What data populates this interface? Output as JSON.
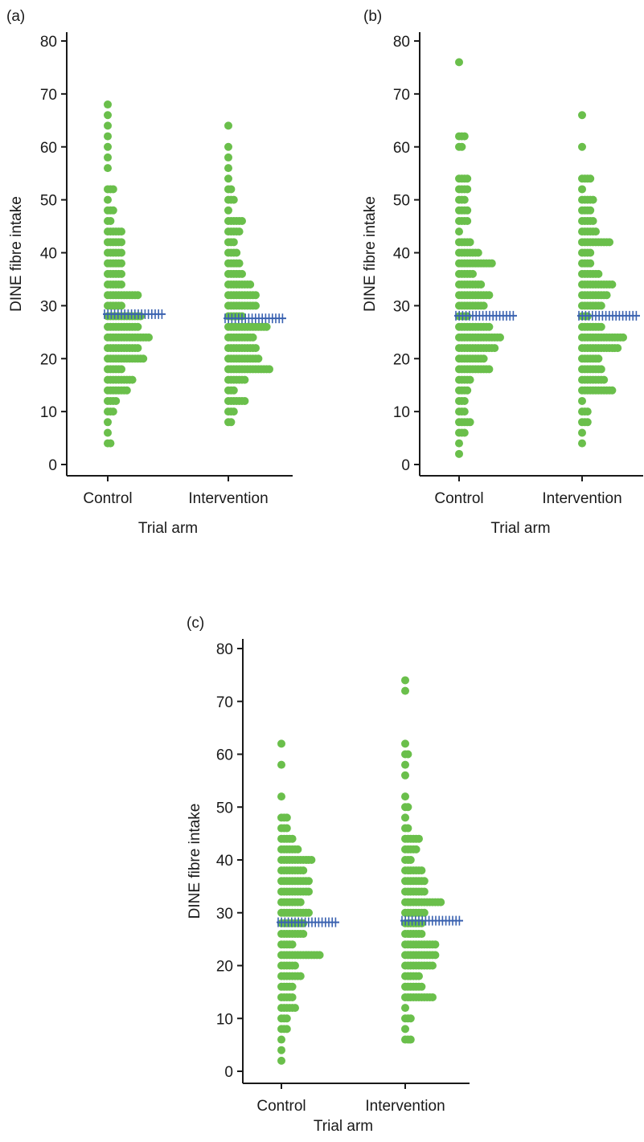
{
  "colors": {
    "dots": "#6abf4b",
    "mean_marker": "#3a62b0",
    "axis": "#1a1a1a"
  },
  "chart_data": [
    {
      "type": "scatter",
      "panel_label": "(a)",
      "xlabel": "Trial arm",
      "ylabel": "DINE fibre intake",
      "categories": [
        "Control",
        "Intervention"
      ],
      "ylim": [
        0,
        80
      ],
      "yticks": [
        0,
        10,
        20,
        30,
        40,
        50,
        60,
        70,
        80
      ],
      "series": [
        {
          "category": "Control",
          "mean": 28.4,
          "bins": [
            [
              68,
              1
            ],
            [
              66,
              1
            ],
            [
              64,
              1
            ],
            [
              62,
              1
            ],
            [
              60,
              1
            ],
            [
              58,
              1
            ],
            [
              56,
              1
            ],
            [
              52,
              3
            ],
            [
              50,
              1
            ],
            [
              48,
              3
            ],
            [
              46,
              2
            ],
            [
              44,
              6
            ],
            [
              42,
              6
            ],
            [
              40,
              6
            ],
            [
              38,
              6
            ],
            [
              36,
              6
            ],
            [
              34,
              6
            ],
            [
              32,
              12
            ],
            [
              30,
              6
            ],
            [
              28,
              13
            ],
            [
              26,
              12
            ],
            [
              24,
              16
            ],
            [
              22,
              12
            ],
            [
              20,
              14
            ],
            [
              18,
              6
            ],
            [
              16,
              10
            ],
            [
              14,
              8
            ],
            [
              12,
              4
            ],
            [
              10,
              3
            ],
            [
              8,
              1
            ],
            [
              6,
              1
            ],
            [
              4,
              2
            ]
          ]
        },
        {
          "category": "Intervention",
          "mean": 27.6,
          "bins": [
            [
              64,
              1
            ],
            [
              60,
              1
            ],
            [
              58,
              1
            ],
            [
              56,
              1
            ],
            [
              54,
              1
            ],
            [
              52,
              2
            ],
            [
              50,
              3
            ],
            [
              48,
              1
            ],
            [
              46,
              6
            ],
            [
              44,
              5
            ],
            [
              42,
              3
            ],
            [
              40,
              4
            ],
            [
              38,
              5
            ],
            [
              36,
              6
            ],
            [
              34,
              9
            ],
            [
              32,
              11
            ],
            [
              30,
              11
            ],
            [
              28,
              6
            ],
            [
              26,
              15
            ],
            [
              24,
              10
            ],
            [
              22,
              11
            ],
            [
              20,
              12
            ],
            [
              18,
              16
            ],
            [
              16,
              7
            ],
            [
              14,
              3
            ],
            [
              12,
              7
            ],
            [
              10,
              3
            ],
            [
              8,
              2
            ]
          ]
        }
      ]
    },
    {
      "type": "scatter",
      "panel_label": "(b)",
      "xlabel": "Trial arm",
      "ylabel": "DINE fibre intake",
      "categories": [
        "Control",
        "Intervention"
      ],
      "ylim": [
        0,
        80
      ],
      "yticks": [
        0,
        10,
        20,
        30,
        40,
        50,
        60,
        70,
        80
      ],
      "series": [
        {
          "category": "Control",
          "mean": 28.1,
          "bins": [
            [
              76,
              1
            ],
            [
              62,
              3
            ],
            [
              60,
              2
            ],
            [
              54,
              4
            ],
            [
              52,
              4
            ],
            [
              50,
              3
            ],
            [
              48,
              4
            ],
            [
              46,
              4
            ],
            [
              44,
              1
            ],
            [
              42,
              5
            ],
            [
              40,
              8
            ],
            [
              38,
              13
            ],
            [
              36,
              6
            ],
            [
              34,
              9
            ],
            [
              32,
              12
            ],
            [
              30,
              10
            ],
            [
              28,
              4
            ],
            [
              26,
              12
            ],
            [
              24,
              16
            ],
            [
              22,
              14
            ],
            [
              20,
              10
            ],
            [
              18,
              12
            ],
            [
              16,
              5
            ],
            [
              14,
              4
            ],
            [
              12,
              3
            ],
            [
              10,
              3
            ],
            [
              8,
              5
            ],
            [
              6,
              3
            ],
            [
              4,
              1
            ],
            [
              2,
              1
            ]
          ]
        },
        {
          "category": "Intervention",
          "mean": 28.1,
          "bins": [
            [
              66,
              1
            ],
            [
              60,
              1
            ],
            [
              54,
              4
            ],
            [
              52,
              1
            ],
            [
              50,
              5
            ],
            [
              48,
              4
            ],
            [
              46,
              5
            ],
            [
              44,
              6
            ],
            [
              42,
              11
            ],
            [
              40,
              4
            ],
            [
              38,
              4
            ],
            [
              36,
              7
            ],
            [
              34,
              12
            ],
            [
              32,
              10
            ],
            [
              30,
              8
            ],
            [
              28,
              3
            ],
            [
              26,
              8
            ],
            [
              24,
              16
            ],
            [
              22,
              14
            ],
            [
              20,
              7
            ],
            [
              18,
              8
            ],
            [
              16,
              9
            ],
            [
              14,
              12
            ],
            [
              12,
              1
            ],
            [
              10,
              3
            ],
            [
              8,
              3
            ],
            [
              6,
              1
            ],
            [
              4,
              1
            ]
          ]
        }
      ]
    },
    {
      "type": "scatter",
      "panel_label": "(c)",
      "xlabel": "Trial arm",
      "ylabel": "DINE fibre intake",
      "categories": [
        "Control",
        "Intervention"
      ],
      "ylim": [
        0,
        80
      ],
      "yticks": [
        0,
        10,
        20,
        30,
        40,
        50,
        60,
        70,
        80
      ],
      "series": [
        {
          "category": "Control",
          "mean": 28.2,
          "bins": [
            [
              62,
              1
            ],
            [
              58,
              1
            ],
            [
              52,
              1
            ],
            [
              48,
              3
            ],
            [
              46,
              3
            ],
            [
              44,
              5
            ],
            [
              42,
              7
            ],
            [
              40,
              12
            ],
            [
              38,
              9
            ],
            [
              36,
              11
            ],
            [
              34,
              11
            ],
            [
              32,
              8
            ],
            [
              30,
              11
            ],
            [
              28,
              9
            ],
            [
              26,
              9
            ],
            [
              24,
              5
            ],
            [
              22,
              15
            ],
            [
              20,
              6
            ],
            [
              18,
              8
            ],
            [
              16,
              5
            ],
            [
              14,
              5
            ],
            [
              12,
              6
            ],
            [
              10,
              3
            ],
            [
              8,
              3
            ],
            [
              6,
              1
            ],
            [
              4,
              1
            ],
            [
              2,
              1
            ]
          ]
        },
        {
          "category": "Intervention",
          "mean": 28.5,
          "bins": [
            [
              74,
              1
            ],
            [
              72,
              1
            ],
            [
              62,
              1
            ],
            [
              60,
              2
            ],
            [
              58,
              1
            ],
            [
              56,
              1
            ],
            [
              52,
              1
            ],
            [
              50,
              2
            ],
            [
              48,
              1
            ],
            [
              46,
              2
            ],
            [
              44,
              6
            ],
            [
              42,
              5
            ],
            [
              40,
              3
            ],
            [
              38,
              7
            ],
            [
              36,
              8
            ],
            [
              34,
              8
            ],
            [
              32,
              14
            ],
            [
              30,
              8
            ],
            [
              28,
              7
            ],
            [
              26,
              7
            ],
            [
              24,
              12
            ],
            [
              22,
              12
            ],
            [
              20,
              11
            ],
            [
              18,
              6
            ],
            [
              16,
              7
            ],
            [
              14,
              11
            ],
            [
              12,
              1
            ],
            [
              10,
              3
            ],
            [
              8,
              1
            ],
            [
              6,
              3
            ]
          ]
        }
      ]
    }
  ]
}
